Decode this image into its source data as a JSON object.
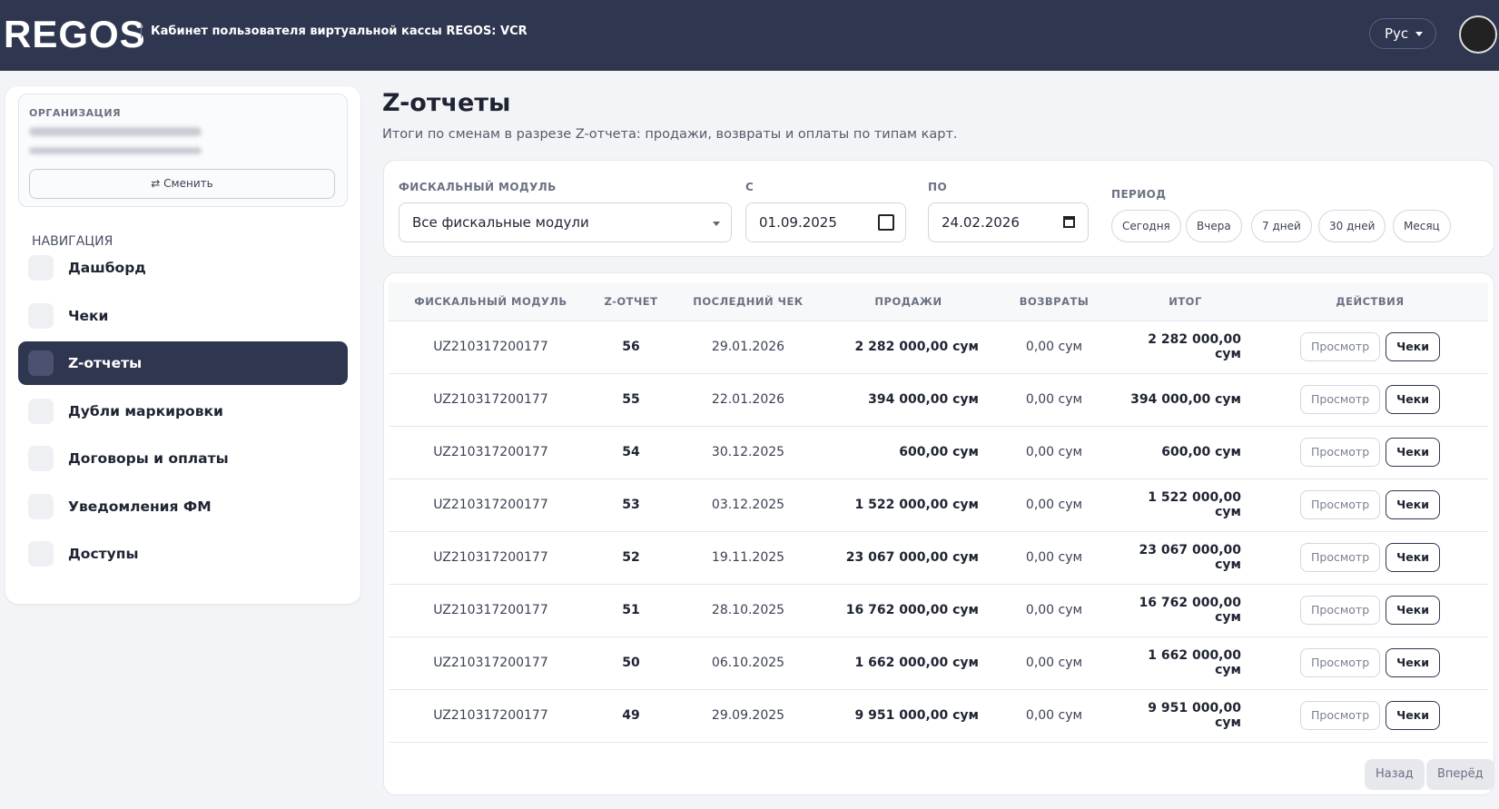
{
  "header": {
    "logo": "REGOS",
    "subtitle": "Кабинет пользователя виртуальной кассы REGOS: VCR",
    "lang": "Рус"
  },
  "sidebar": {
    "org_label": "ОРГАНИЗАЦИЯ",
    "switch": "⇄ Сменить",
    "nav_title": "НАВИГАЦИЯ",
    "nav": [
      "Дашборд",
      "Чеки",
      "Z-отчеты",
      "Дубли маркировки",
      "Договоры и оплаты",
      "Уведомления ФМ",
      "Доступы"
    ]
  },
  "page": {
    "title": "Z-отчеты",
    "subtitle": "Итоги по сменам в разрезе Z-отчета: продажи, возвраты и оплаты по типам карт."
  },
  "filters": {
    "module_label": "ФИСКАЛЬНЫЙ МОДУЛЬ",
    "module": "Все фискальные модули",
    "from_label": "С",
    "from": "01.09.2025",
    "to_label": "ПО",
    "to": "24.02.2026",
    "period_label": "ПЕРИОД",
    "periods": [
      "Сегодня",
      "Вчера",
      "7 дней",
      "30 дней",
      "Месяц"
    ]
  },
  "table": {
    "headers": [
      "ФИСКАЛЬНЫЙ МОДУЛЬ",
      "Z-ОТЧЕТ",
      "ПОСЛЕДНИЙ ЧЕК",
      "ПРОДАЖИ",
      "ВОЗВРАТЫ",
      "ИТОГ",
      "ДЕЙСТВИЯ"
    ],
    "rows": [
      [
        "UZ210317200177",
        "56",
        "29.01.2026",
        "2 282 000,00 сум",
        "0,00 сум",
        "2 282 000,00 сум"
      ],
      [
        "UZ210317200177",
        "55",
        "22.01.2026",
        "394 000,00 сум",
        "0,00 сум",
        "394 000,00 сум"
      ],
      [
        "UZ210317200177",
        "54",
        "30.12.2025",
        "600,00 сум",
        "0,00 сум",
        "600,00 сум"
      ],
      [
        "UZ210317200177",
        "53",
        "03.12.2025",
        "1 522 000,00 сум",
        "0,00 сум",
        "1 522 000,00 сум"
      ],
      [
        "UZ210317200177",
        "52",
        "19.11.2025",
        "23 067 000,00 сум",
        "0,00 сум",
        "23 067 000,00 сум"
      ],
      [
        "UZ210317200177",
        "51",
        "28.10.2025",
        "16 762 000,00 сум",
        "0,00 сум",
        "16 762 000,00 сум"
      ],
      [
        "UZ210317200177",
        "50",
        "06.10.2025",
        "1 662 000,00 сум",
        "0,00 сум",
        "1 662 000,00 сум"
      ],
      [
        "UZ210317200177",
        "49",
        "29.09.2025",
        "9 951 000,00 сум",
        "0,00 сум",
        "9 951 000,00 сум"
      ]
    ],
    "actions": [
      "Просмотр",
      "Чеки"
    ]
  },
  "pagination": {
    "prev": "Назад",
    "next": "Вперёд"
  }
}
